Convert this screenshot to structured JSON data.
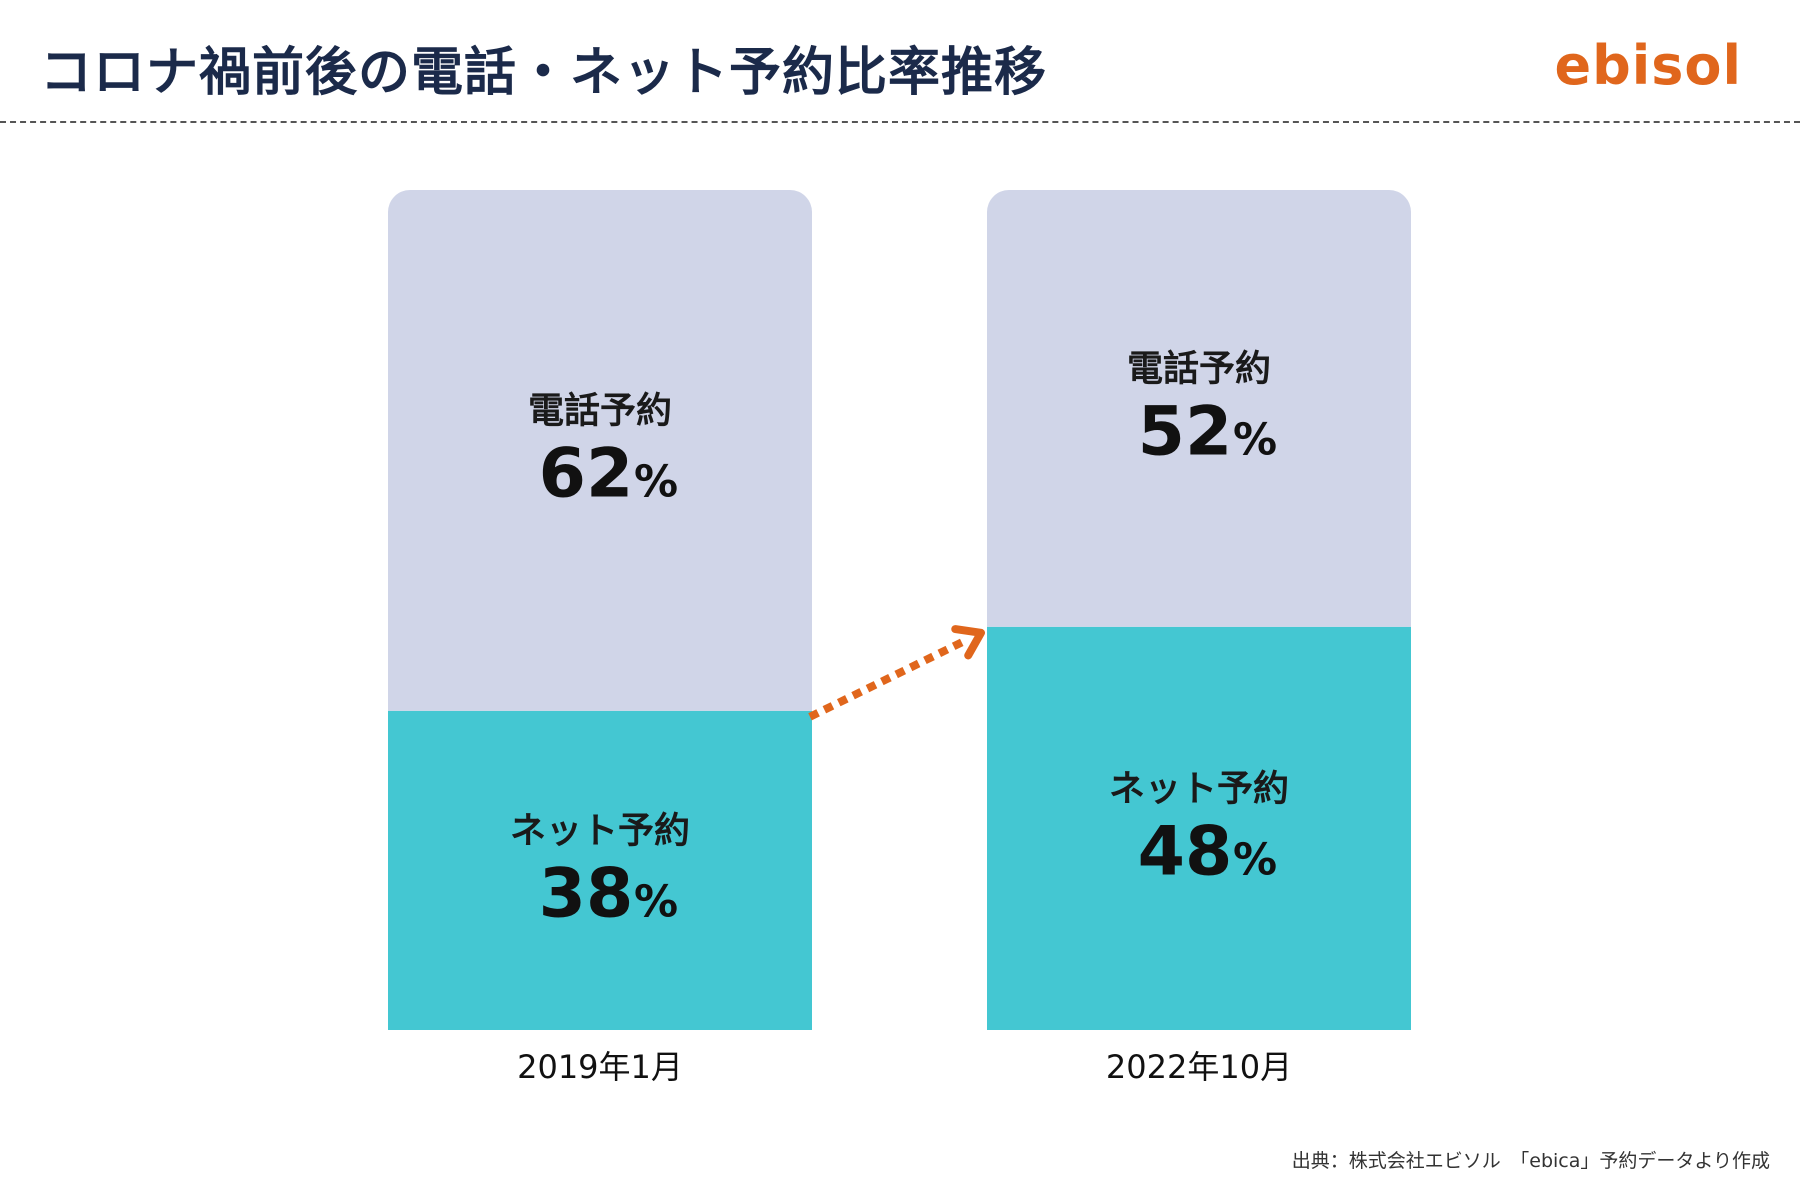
{
  "header": {
    "title": "コロナ禍前後の電話・ネット予約比率推移",
    "logo_text": "ebisol"
  },
  "colors": {
    "phone": "#d0d5e8",
    "net": "#44c7d2",
    "arrow": "#e0661c",
    "title": "#1b2a4a",
    "logo": "#e0661c"
  },
  "chart_data": {
    "type": "bar",
    "stacked": true,
    "orientation": "vertical",
    "categories": [
      "2019年1月",
      "2022年10月"
    ],
    "series": [
      {
        "name": "ネット予約",
        "values": [
          38,
          48
        ],
        "color": "#44c7d2"
      },
      {
        "name": "電話予約",
        "values": [
          62,
          52
        ],
        "color": "#d0d5e8"
      }
    ],
    "unit": "%",
    "ylim": [
      0,
      100
    ],
    "grid": false,
    "legend": "none",
    "annotations": [
      "arrow from ネット予約 2019年1月 to ネット予約 2022年10月"
    ]
  },
  "footer": {
    "source": "出典：株式会社エビソル　「ebica」予約データより作成"
  }
}
